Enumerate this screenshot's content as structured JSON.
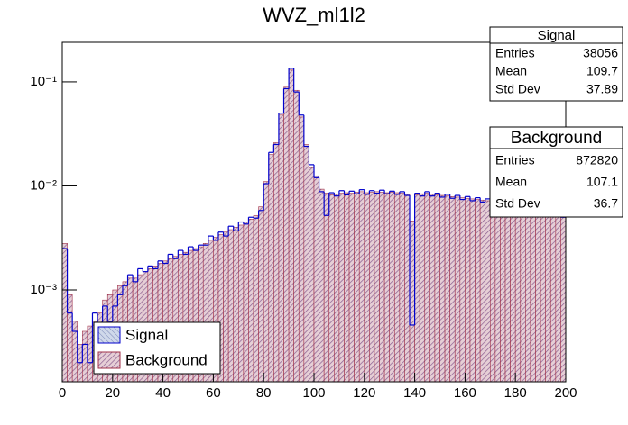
{
  "chart_data": {
    "type": "histogram",
    "title": "WVZ_ml1l2",
    "log_y": true,
    "legend": "lower left",
    "bins": [
      0,
      2,
      4,
      6,
      8,
      10,
      12,
      14,
      16,
      18,
      20,
      22,
      24,
      26,
      28,
      30,
      32,
      34,
      36,
      38,
      40,
      42,
      44,
      46,
      48,
      50,
      52,
      54,
      56,
      58,
      60,
      62,
      64,
      66,
      68,
      70,
      72,
      74,
      76,
      78,
      80,
      82,
      84,
      86,
      88,
      90,
      92,
      94,
      96,
      98,
      100,
      102,
      104,
      106,
      108,
      110,
      112,
      114,
      116,
      118,
      120,
      122,
      124,
      126,
      128,
      130,
      132,
      134,
      136,
      138,
      140,
      142,
      144,
      146,
      148,
      150,
      152,
      154,
      156,
      158,
      160,
      162,
      164,
      166,
      168,
      170,
      172,
      174,
      176,
      178,
      180,
      182,
      184,
      186,
      188,
      190,
      192,
      194,
      196,
      198,
      200
    ],
    "series": [
      {
        "name": "Signal",
        "color": "#0000cc",
        "values": [
          0.0025,
          0.0006,
          0.0004,
          0.0002,
          0.0003,
          0.0002,
          0.0006,
          0.0004,
          0.0007,
          0.0005,
          0.0007,
          0.0009,
          0.0011,
          0.0014,
          0.0012,
          0.0016,
          0.0015,
          0.0017,
          0.0016,
          0.0019,
          0.0018,
          0.0022,
          0.002,
          0.0024,
          0.0022,
          0.0026,
          0.0024,
          0.0027,
          0.0027,
          0.0033,
          0.003,
          0.0036,
          0.0033,
          0.0041,
          0.0037,
          0.0045,
          0.0043,
          0.005,
          0.0049,
          0.0058,
          0.0105,
          0.021,
          0.025,
          0.05,
          0.086,
          0.135,
          0.08,
          0.048,
          0.024,
          0.016,
          0.012,
          0.0088,
          0.0052,
          0.0086,
          0.008,
          0.009,
          0.0082,
          0.0089,
          0.0084,
          0.0092,
          0.0083,
          0.009,
          0.0085,
          0.0091,
          0.0084,
          0.0089,
          0.0083,
          0.0088,
          0.0081,
          0.00046,
          0.0085,
          0.008,
          0.0088,
          0.008,
          0.0085,
          0.0078,
          0.0083,
          0.0076,
          0.0081,
          0.0074,
          0.0079,
          0.0072,
          0.0077,
          0.007,
          0.0075,
          0.0068,
          0.0073,
          0.0066,
          0.0071,
          0.0064,
          0.0069,
          0.0062,
          0.0065,
          0.0056,
          0.0061,
          0.0052,
          0.0059,
          0.0053,
          0.0057,
          0.005
        ]
      },
      {
        "name": "Background",
        "color": "#a03048",
        "values": [
          0.0028,
          0.0009,
          0.0005,
          0.0003,
          0.0004,
          0.00045,
          0.0005,
          0.0006,
          0.0008,
          0.0009,
          0.001,
          0.0011,
          0.0012,
          0.0013,
          0.0013,
          0.0014,
          0.0015,
          0.0016,
          0.0017,
          0.0018,
          0.0019,
          0.002,
          0.0021,
          0.0022,
          0.0023,
          0.0024,
          0.0025,
          0.0026,
          0.0028,
          0.003,
          0.0032,
          0.0034,
          0.0036,
          0.0038,
          0.004,
          0.0042,
          0.0045,
          0.0048,
          0.0052,
          0.0063,
          0.011,
          0.02,
          0.026,
          0.048,
          0.089,
          0.13,
          0.083,
          0.046,
          0.025,
          0.015,
          0.0125,
          0.0093,
          0.0085,
          0.0082,
          0.0083,
          0.0085,
          0.0086,
          0.0085,
          0.0087,
          0.0088,
          0.0086,
          0.0087,
          0.0088,
          0.0087,
          0.0086,
          0.0087,
          0.0086,
          0.0085,
          0.0083,
          0.0046,
          0.0082,
          0.0084,
          0.0085,
          0.0083,
          0.0082,
          0.0081,
          0.008,
          0.0079,
          0.0078,
          0.0077,
          0.0076,
          0.0075,
          0.0074,
          0.0073,
          0.0072,
          0.0071,
          0.007,
          0.0069,
          0.0068,
          0.0067,
          0.0066,
          0.0064,
          0.0063,
          0.0062,
          0.006,
          0.0059,
          0.0058,
          0.0056,
          0.0055,
          0.0054
        ]
      }
    ],
    "xlim": [
      0,
      200
    ],
    "xticks": [
      0,
      20,
      40,
      60,
      80,
      100,
      120,
      140,
      160,
      180,
      200
    ],
    "ylim": [
      0.000131,
      0.24
    ],
    "yticks": [
      {
        "value": 0.001,
        "label": "10⁻³"
      },
      {
        "value": 0.01,
        "label": "10⁻²"
      },
      {
        "value": 0.1,
        "label": "10⁻¹"
      }
    ],
    "stats": [
      {
        "title": "Signal",
        "rows": [
          {
            "label": "Entries",
            "value": 38056
          },
          {
            "label": "Mean",
            "value": 109.7
          },
          {
            "label": "Std Dev",
            "value": 37.89
          }
        ]
      },
      {
        "title": "Background",
        "rows": [
          {
            "label": "Entries",
            "value": 872820
          },
          {
            "label": "Mean",
            "value": 107.1
          },
          {
            "label": "Std Dev",
            "value": 36.7
          }
        ]
      }
    ]
  }
}
